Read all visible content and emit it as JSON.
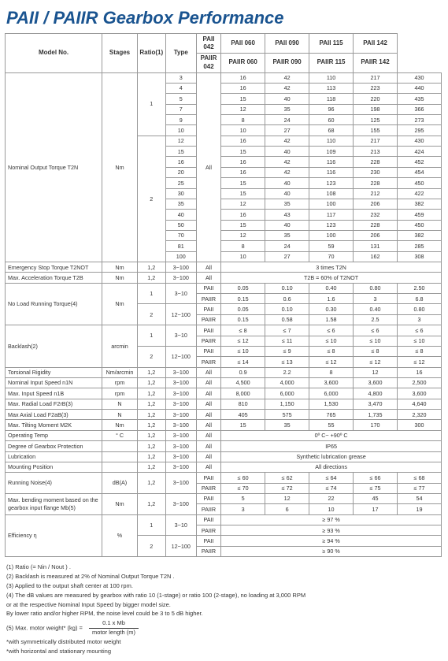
{
  "title": "PAII / PAIIR Gearbox Performance",
  "columns": {
    "model": "Model No.",
    "stages": "Stages",
    "ratio": "Ratio(1)",
    "type": "Type",
    "p042a": "PAII 042",
    "p060a": "PAII 060",
    "p090a": "PAII 090",
    "p115a": "PAII 115",
    "p142a": "PAII 142",
    "p042b": "PAIIR 042",
    "p060b": "PAIIR 060",
    "p090b": "PAIIR 090",
    "p115b": "PAIIR 115",
    "p142b": "PAIIR 142"
  },
  "labels": {
    "nominalOutput": "Nominal Output Torque T2N",
    "emergStop": "Emergency Stop Torque T2NOT",
    "maxAccel": "Max. Acceleration Torque T2B",
    "noLoad": "No Load Running Torque(4)",
    "backlash": "Backlash(2)",
    "torsional": "Torsional Rigidity",
    "nominalInput": "Nominal Input Speed n1N",
    "maxInput": "Max. Input Speed n1B",
    "maxRadial": "Max. Radial Load F2rB(3)",
    "maxAxial": "Max Axial Load F2aB(3)",
    "maxTilt": "Max. Tilting Moment M2K",
    "opTemp": "Operating Temp",
    "protection": "Degree of Gearbox  Protection",
    "lubrication": "Lubrication",
    "mounting": "Mounting Position",
    "noise": "Running Noise(4)",
    "maxBend": "Max. bending moment based on the gearbox input flange Mb(5)",
    "efficiency": "Efficiency η"
  },
  "units": {
    "nm": "Nm",
    "arcmin": "arcmin",
    "nmarcmin": "Nm/arcmin",
    "rpm": "rpm",
    "n": "N",
    "c": "° C",
    "pct": "%",
    "dba": "dB(A)"
  },
  "types": {
    "all": "All",
    "paii": "PAII",
    "paiir": "PAIIR"
  },
  "stages": {
    "s1": "1",
    "s2": "2",
    "s12": "1,2"
  },
  "ratios": {
    "r3_100": "3~100",
    "r3_10": "3~10",
    "r12_100": "12~100"
  },
  "t2n_s1": {
    "3": [
      "16",
      "42",
      "110",
      "217",
      "430"
    ],
    "4": [
      "16",
      "42",
      "113",
      "223",
      "440"
    ],
    "5": [
      "15",
      "40",
      "118",
      "220",
      "435"
    ],
    "7": [
      "12",
      "35",
      "96",
      "198",
      "366"
    ],
    "9": [
      "8",
      "24",
      "60",
      "125",
      "273"
    ],
    "10": [
      "10",
      "27",
      "68",
      "155",
      "295"
    ]
  },
  "t2n_s2": {
    "12": [
      "16",
      "42",
      "110",
      "217",
      "430"
    ],
    "15": [
      "15",
      "40",
      "109",
      "213",
      "424"
    ],
    "16": [
      "16",
      "42",
      "116",
      "228",
      "452"
    ],
    "20": [
      "16",
      "42",
      "116",
      "230",
      "454"
    ],
    "25": [
      "15",
      "40",
      "123",
      "228",
      "450"
    ],
    "30": [
      "15",
      "40",
      "108",
      "212",
      "422"
    ],
    "35": [
      "12",
      "35",
      "100",
      "206",
      "382"
    ],
    "40": [
      "16",
      "43",
      "117",
      "232",
      "459"
    ],
    "50": [
      "15",
      "40",
      "123",
      "228",
      "450"
    ],
    "70": [
      "12",
      "35",
      "100",
      "206",
      "382"
    ],
    "81": [
      "8",
      "24",
      "59",
      "131",
      "285"
    ],
    "100": [
      "10",
      "27",
      "70",
      "162",
      "308"
    ]
  },
  "span": {
    "emerg": "3 times T2N",
    "accel": "T2B = 60% of T2NOT",
    "opTemp": "0º C~ +90º C",
    "ip": "IP65",
    "lube": "Synthetic lubrication grease",
    "mount": "All directions",
    "eff1a": "≥ 97 %",
    "eff1b": "≥ 93 %",
    "eff2a": "≥ 94 %",
    "eff2b": "≥ 90 %"
  },
  "noload": {
    "s1a": [
      "0.05",
      "0.10",
      "0.40",
      "0.80",
      "2.50"
    ],
    "s1b": [
      "0.15",
      "0.6",
      "1.6",
      "3",
      "6.8"
    ],
    "s2a": [
      "0.05",
      "0.10",
      "0.30",
      "0.40",
      "0.80"
    ],
    "s2b": [
      "0.15",
      "0.58",
      "1.58",
      "2.5",
      "3"
    ]
  },
  "backlashR": {
    "s1a": [
      "≤ 8",
      "≤ 7",
      "≤ 6",
      "≤ 6",
      "≤ 6"
    ],
    "s1b": [
      "≤ 12",
      "≤ 11",
      "≤ 10",
      "≤ 10",
      "≤ 10"
    ],
    "s2a": [
      "≤ 10",
      "≤ 9",
      "≤ 8",
      "≤ 8",
      "≤ 8"
    ],
    "s2b": [
      "≤ 14",
      "≤ 13",
      "≤ 12",
      "≤ 12",
      "≤ 12"
    ]
  },
  "rows": {
    "torsional": [
      "0.9",
      "2.2",
      "8",
      "12",
      "16"
    ],
    "nominalInput": [
      "4,500",
      "4,000",
      "3,600",
      "3,600",
      "2,500"
    ],
    "maxInput": [
      "8,000",
      "6,000",
      "6,000",
      "4,800",
      "3,600"
    ],
    "maxRadial": [
      "810",
      "1,150",
      "1,530",
      "3,470",
      "4,640"
    ],
    "maxAxial": [
      "405",
      "575",
      "765",
      "1,735",
      "2,320"
    ],
    "maxTilt": [
      "15",
      "35",
      "55",
      "170",
      "300"
    ],
    "noiseA": [
      "≤ 60",
      "≤ 62",
      "≤ 64",
      "≤ 66",
      "≤ 68"
    ],
    "noiseB": [
      "≤ 70",
      "≤ 72",
      "≤ 74",
      "≤ 75",
      "≤ 77"
    ],
    "bendA": [
      "5",
      "12",
      "22",
      "45",
      "54"
    ],
    "bendB": [
      "3",
      "6",
      "10",
      "17",
      "19"
    ]
  },
  "foot": {
    "f1": "(1) Ratio (= Nin / Nout ) .",
    "f2": "(2) Backlash is measured at 2% of Nominal Output Torque T2N .",
    "f3": "(3) Applied to the output shaft center at 100 rpm.",
    "f4": "(4) The dB values are measured by gearbox with ratio 10 (1-stage) or ratio 100 (2-stage), no loading at 3,000 RPM",
    "f4a": "or at the respective Nominal Input Speed by bigger model size.",
    "f4b": "By lower ratio and/or higher RPM, the noise level could be 3 to 5 dB higher.",
    "f5a": "(5) Max. motor weight* (kg)  =",
    "f5b": "0.1 x Mb",
    "f5c": "motor length (m)",
    "f6": "*with symmetrically distributed motor weight",
    "f7": "*with horizontal and stationary mounting"
  }
}
